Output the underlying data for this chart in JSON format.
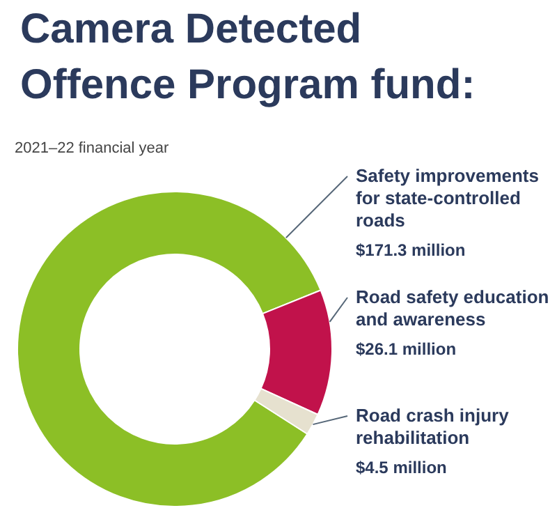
{
  "chart_data": {
    "type": "donut",
    "title": "Camera Detected Offence Program fund:",
    "subtitle": "2021–22 financial year",
    "categories": [
      "Safety improvements for state-controlled roads",
      "Road safety education and awareness",
      "Road crash injury rehabilitation"
    ],
    "values": [
      171.3,
      26.1,
      4.5
    ],
    "colors": [
      "#8cbf26",
      "#c1124b",
      "#e6e1cf"
    ],
    "value_labels": [
      "$171.3 million",
      "$26.1 million",
      "$4.5 million"
    ]
  }
}
